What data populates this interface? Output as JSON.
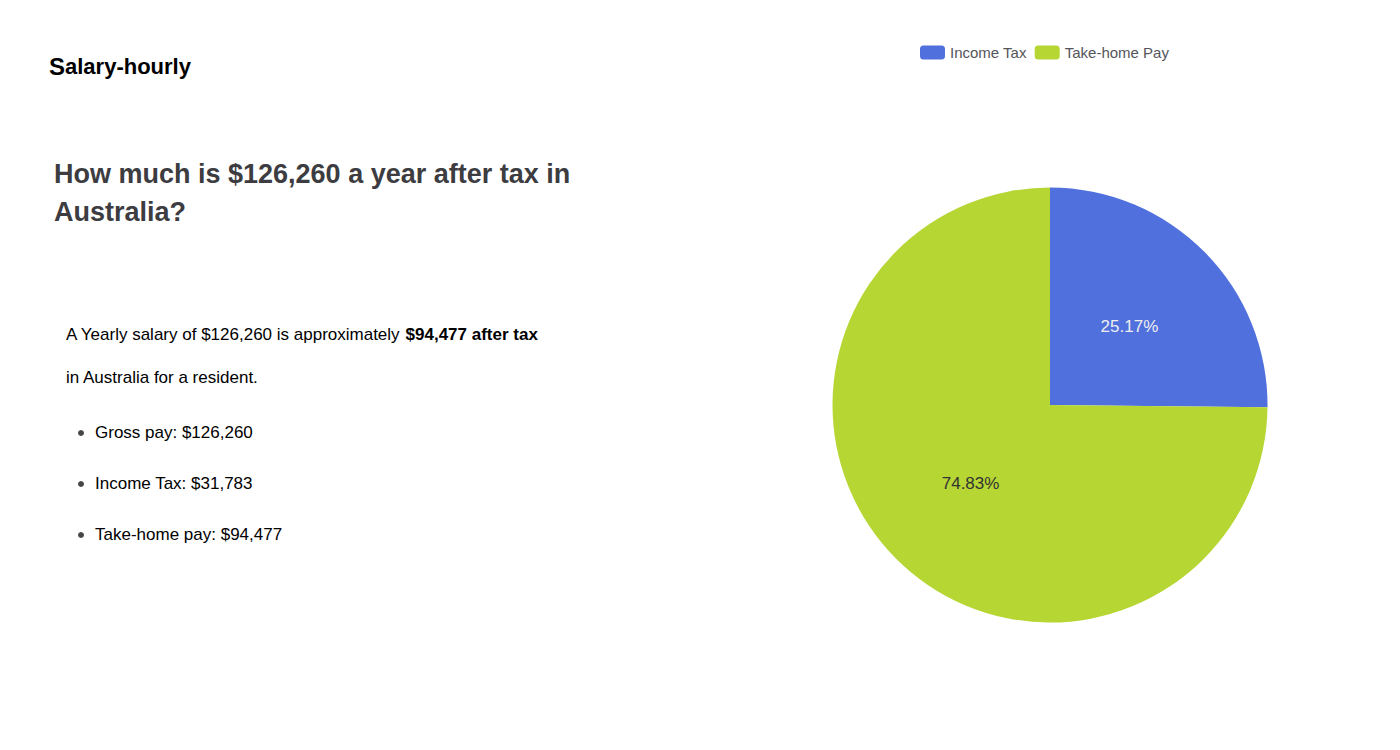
{
  "chart_data": {
    "type": "pie",
    "title": "How much is $126,260 a year after tax in\nAustralia?",
    "categories": [
      "Income Tax",
      "Take-home Pay"
    ],
    "values": [
      25.17,
      74.83
    ],
    "value_labels": [
      "25.17%",
      "74.83%"
    ],
    "data_labels": true,
    "legend": "top",
    "annotations": [
      "S",
      "alary-hourly",
      "A Yearly salary of $126,260 is approximately ",
      "$94,477 after tax",
      "in Australia for a resident.",
      "Gross pay: $126,260",
      "Income Tax: $31,783",
      "Take-home pay: $94,477"
    ]
  }
}
